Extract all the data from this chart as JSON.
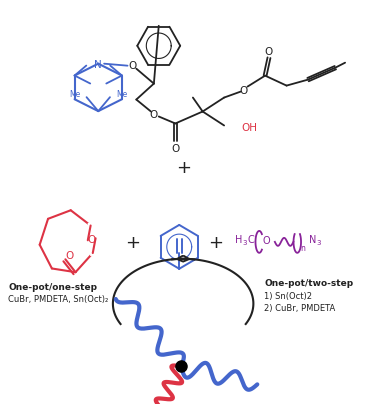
{
  "bg_color": "#ffffff",
  "fig_width": 3.75,
  "fig_height": 4.06,
  "dpi": 100,
  "left_label_bold": "One-pot/one-step",
  "left_label_normal": "CuBr, PMDETA, Sn(Oct)₂",
  "right_label_bold": "One-pot/two-step",
  "right_label_line1": "1) Sn(Oct)2",
  "right_label_line2": "2) CuBr, PMDETA",
  "arrow_color": "#333333",
  "blue_color": "#4466cc",
  "red_color": "#dd3344",
  "purple_color": "#882299",
  "black_color": "#222222"
}
